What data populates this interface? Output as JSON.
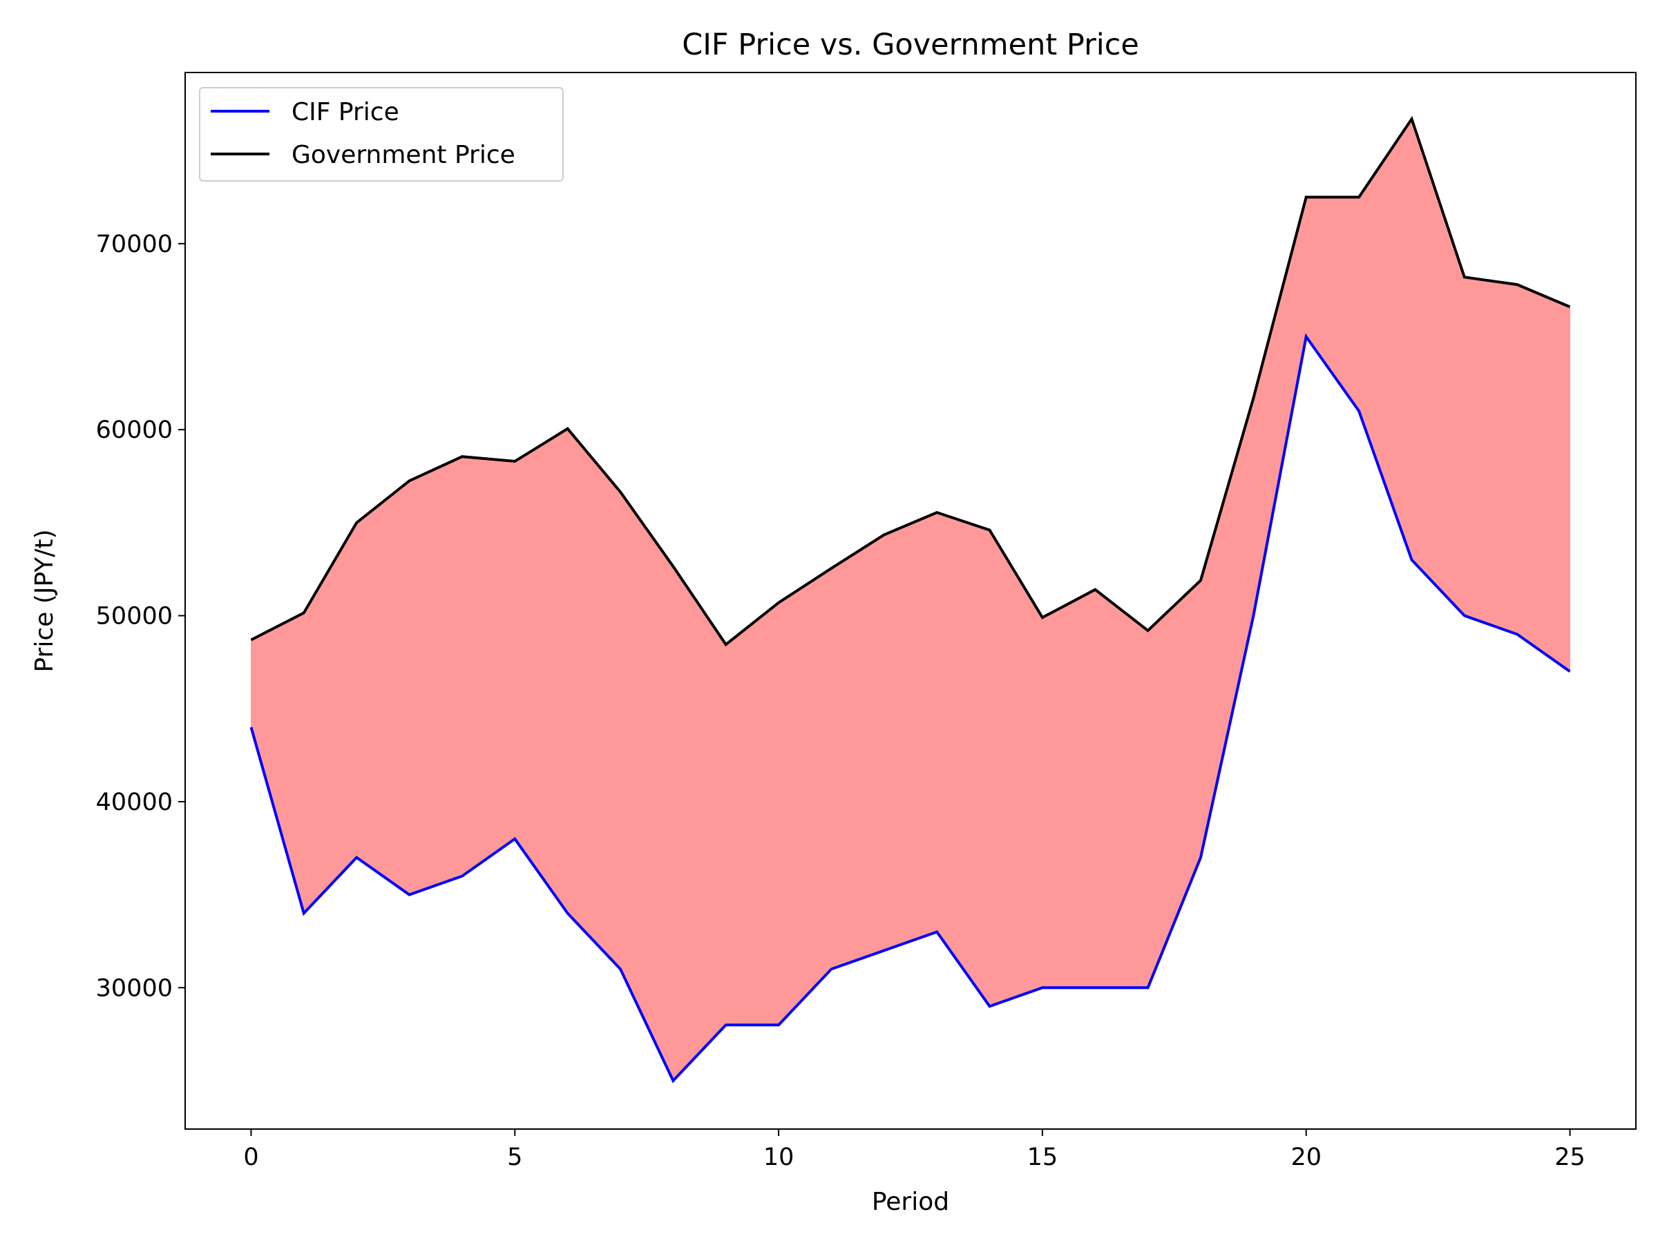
{
  "chart_data": {
    "type": "line",
    "title": "CIF Price vs. Government Price",
    "xlabel": "Period",
    "ylabel": "Price (JPY/t)",
    "xlim": [
      -1.25,
      26.25
    ],
    "ylim": [
      22400,
      79200
    ],
    "x_ticks": [
      0,
      5,
      10,
      15,
      20,
      25
    ],
    "y_ticks": [
      30000,
      40000,
      50000,
      60000,
      70000
    ],
    "x": [
      0,
      1,
      2,
      3,
      4,
      5,
      6,
      7,
      8,
      9,
      10,
      11,
      12,
      13,
      14,
      15,
      16,
      17,
      18,
      19,
      20,
      21,
      22,
      23,
      24,
      25
    ],
    "series": [
      {
        "name": "CIF Price",
        "color": "#0000ff",
        "values": [
          44000,
          34000,
          37000,
          35000,
          36000,
          38000,
          34000,
          31000,
          25000,
          28000,
          28000,
          31000,
          32000,
          33000,
          29000,
          30000,
          30000,
          30000,
          37000,
          50000,
          65000,
          61000,
          53000,
          50000,
          49000,
          47000
        ]
      },
      {
        "name": "Government Price",
        "color": "#000000",
        "values": [
          48700,
          50150,
          55000,
          57250,
          58550,
          58300,
          60050,
          56650,
          52650,
          48450,
          50700,
          52550,
          54350,
          55550,
          54600,
          49900,
          51400,
          49200,
          51900,
          61700,
          72500,
          72500,
          76700,
          68200,
          67800,
          66600
        ]
      }
    ],
    "fill_between": {
      "color": "#ff9999",
      "between": [
        "CIF Price",
        "Government Price"
      ]
    },
    "legend": {
      "position": "upper left"
    },
    "grid": false
  }
}
